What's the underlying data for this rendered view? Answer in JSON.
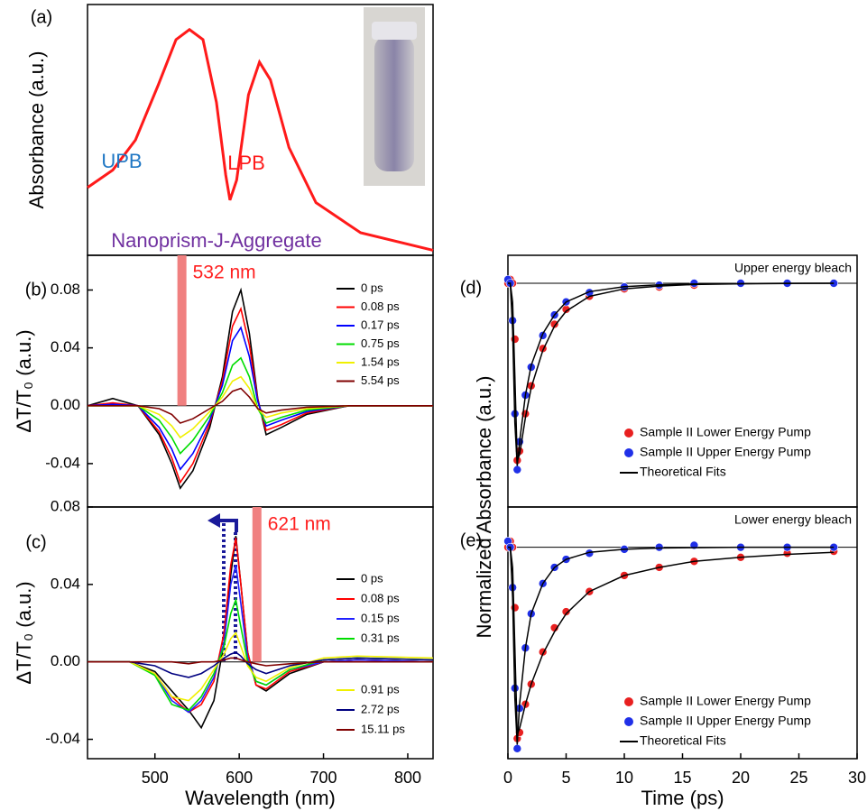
{
  "chart_data": [
    {
      "type": "line",
      "panel_label": "(a)",
      "ylabel": "Absorbance (a.u.)",
      "x": [
        420,
        450,
        477,
        504,
        525,
        541,
        557,
        573,
        584,
        589,
        597,
        611,
        624,
        637,
        659,
        691,
        744,
        830
      ],
      "series": [
        {
          "color": "#ff1a1a",
          "values": [
            0.27,
            0.34,
            0.46,
            0.68,
            0.86,
            0.9,
            0.86,
            0.61,
            0.32,
            0.22,
            0.3,
            0.64,
            0.77,
            0.7,
            0.43,
            0.21,
            0.09,
            0.02
          ]
        }
      ],
      "xlim": [
        420,
        830
      ],
      "ylim": [
        0,
        1
      ],
      "annotations": [
        {
          "text": "UPB",
          "color": "#1f77c4"
        },
        {
          "text": "LPB",
          "color": "#ff1a1a"
        },
        {
          "text": "Nanoprism-J-Aggregate",
          "color": "#7030a0"
        }
      ]
    },
    {
      "type": "line",
      "panel_label": "(b)",
      "ylabel": "ΔT/T₀ (a.u.)",
      "x": [
        420,
        450,
        480,
        505,
        520,
        530,
        545,
        565,
        580,
        592,
        602,
        612,
        622,
        632,
        650,
        680,
        730,
        830
      ],
      "series": [
        {
          "name": "0 ps",
          "color": "#000000",
          "values": [
            0,
            0.005,
            0,
            -0.02,
            -0.04,
            -0.057,
            -0.045,
            -0.015,
            0.02,
            0.065,
            0.08,
            0.05,
            0.005,
            -0.02,
            -0.015,
            -0.006,
            0,
            0
          ]
        },
        {
          "name": "0.08 ps",
          "color": "#ff0000",
          "values": [
            0,
            0.002,
            0,
            -0.018,
            -0.036,
            -0.053,
            -0.04,
            -0.012,
            0.017,
            0.055,
            0.067,
            0.042,
            0.004,
            -0.017,
            -0.013,
            -0.005,
            0,
            0
          ]
        },
        {
          "name": "0.17 ps",
          "color": "#0000ff",
          "values": [
            0,
            0.001,
            0,
            -0.015,
            -0.03,
            -0.044,
            -0.033,
            -0.01,
            0.014,
            0.045,
            0.054,
            0.034,
            0.003,
            -0.014,
            -0.01,
            -0.004,
            0,
            0
          ]
        },
        {
          "name": "0.75 ps",
          "color": "#00dd00",
          "values": [
            0,
            0,
            0,
            -0.01,
            -0.022,
            -0.033,
            -0.024,
            -0.007,
            0.009,
            0.028,
            0.033,
            0.02,
            -0.002,
            -0.012,
            -0.008,
            -0.003,
            0,
            0
          ]
        },
        {
          "name": "1.54 ps",
          "color": "#f0f000",
          "values": [
            0,
            0,
            0,
            -0.006,
            -0.014,
            -0.022,
            -0.016,
            -0.004,
            0.006,
            0.017,
            0.02,
            0.012,
            -0.002,
            -0.008,
            -0.005,
            -0.002,
            0,
            0
          ]
        },
        {
          "name": "5.54 ps",
          "color": "#800000",
          "values": [
            0,
            0,
            0,
            -0.002,
            -0.006,
            -0.012,
            -0.009,
            -0.002,
            0.003,
            0.01,
            0.012,
            0.006,
            -0.002,
            -0.005,
            -0.003,
            -0.001,
            0,
            0
          ]
        }
      ],
      "xlim": [
        420,
        830
      ],
      "ylim": [
        -0.07,
        0.104
      ],
      "yticks": [
        -0.04,
        {
          "value": 0,
          "label": "0.00"
        },
        0.04,
        0.08
      ],
      "pump": {
        "label": "532 nm",
        "value": 532
      }
    },
    {
      "type": "line",
      "panel_label": "(c)",
      "ylabel": "ΔT/T₀ (a.u.)",
      "xlabel": "Wavelength (nm)",
      "x": [
        420,
        470,
        500,
        520,
        540,
        555,
        570,
        582,
        590,
        596,
        602,
        610,
        620,
        632,
        660,
        700,
        740,
        830
      ],
      "series": [
        {
          "name": "0 ps",
          "color": "#000000",
          "values": [
            0,
            0,
            -0.005,
            -0.015,
            -0.025,
            -0.034,
            -0.02,
            0.01,
            0.045,
            0.065,
            0.04,
            0.005,
            -0.012,
            -0.015,
            -0.006,
            0,
            0.001,
            0
          ]
        },
        {
          "name": "0.08 ps",
          "color": "#ff0000",
          "values": [
            0,
            0,
            -0.006,
            -0.018,
            -0.026,
            -0.022,
            -0.01,
            0.015,
            0.05,
            0.064,
            0.04,
            0.005,
            -0.012,
            -0.014,
            -0.005,
            0,
            0.001,
            0
          ]
        },
        {
          "name": "0.15 ps",
          "color": "#2020ff",
          "values": [
            0,
            0,
            -0.006,
            -0.02,
            -0.026,
            -0.02,
            -0.008,
            0.01,
            0.04,
            0.05,
            0.03,
            0.002,
            -0.01,
            -0.012,
            -0.004,
            0,
            0.001,
            0
          ]
        },
        {
          "name": "0.31 ps",
          "color": "#00dd00",
          "values": [
            0,
            0,
            -0.007,
            -0.022,
            -0.025,
            -0.018,
            -0.006,
            0.008,
            0.025,
            0.032,
            0.018,
            0,
            -0.01,
            -0.012,
            -0.004,
            0.001,
            0.002,
            0.001
          ]
        },
        {
          "name": "0.91 ps",
          "color": "#f0f000",
          "values": [
            0,
            0,
            -0.006,
            -0.018,
            -0.02,
            -0.014,
            -0.004,
            0.004,
            0.012,
            0.015,
            0.008,
            -0.002,
            -0.008,
            -0.01,
            -0.003,
            0.002,
            0.003,
            0.002
          ]
        },
        {
          "name": "2.72 ps",
          "color": "#000080",
          "values": [
            0,
            0,
            -0.002,
            -0.006,
            -0.008,
            -0.006,
            -0.002,
            0.002,
            0.004,
            0.005,
            0.003,
            -0.001,
            -0.004,
            -0.006,
            -0.002,
            0.001,
            0.002,
            0.001
          ]
        },
        {
          "name": "15.11 ps",
          "color": "#800000",
          "values": [
            0,
            0,
            0,
            0,
            -0.001,
            0,
            0,
            0.001,
            0.002,
            0.002,
            0.001,
            0,
            -0.001,
            -0.002,
            -0.001,
            0,
            0,
            0
          ]
        }
      ],
      "xlim": [
        420,
        830
      ],
      "ylim": [
        -0.05,
        0.08
      ],
      "xticks": [
        500,
        600,
        700,
        800
      ],
      "yticks": [
        -0.04,
        {
          "value": 0,
          "label": "0.00"
        },
        0.04,
        0.08
      ],
      "pump": {
        "label": "621 nm",
        "value": 621
      }
    },
    {
      "type": "scatter",
      "panel_label": "(d)",
      "title": "Upper energy bleach",
      "ylabel": "Normalized Absorbance (a.u.)",
      "x": [
        0,
        0.2,
        0.4,
        0.6,
        0.8,
        1,
        1.5,
        2,
        3,
        4,
        5,
        7,
        10,
        13,
        16,
        20,
        24,
        28
      ],
      "series": [
        {
          "name": "Sample II Lower Energy Pump",
          "color": "#e82020",
          "values": [
            0,
            0.02,
            0,
            -0.3,
            -0.95,
            -0.9,
            -0.7,
            -0.55,
            -0.35,
            -0.22,
            -0.14,
            -0.07,
            -0.03,
            -0.02,
            -0.01,
            0,
            0,
            0
          ]
        },
        {
          "name": "Sample II Upper Energy Pump",
          "color": "#2030e8",
          "values": [
            0.02,
            0,
            -0.2,
            -0.7,
            -1.0,
            -0.85,
            -0.6,
            -0.45,
            -0.28,
            -0.17,
            -0.1,
            -0.05,
            -0.02,
            -0.01,
            0,
            0,
            0,
            0
          ]
        }
      ],
      "fits": {
        "name": "Theoretical Fits",
        "color": "#000000",
        "lines": [
          [
            0,
            0,
            -0.1,
            -0.5,
            -0.95,
            -0.92,
            -0.72,
            -0.56,
            -0.36,
            -0.23,
            -0.15,
            -0.07,
            -0.03,
            -0.015,
            -0.007,
            -0.003,
            -0.001,
            0
          ],
          [
            0,
            0,
            -0.25,
            -0.75,
            -0.98,
            -0.85,
            -0.6,
            -0.44,
            -0.27,
            -0.17,
            -0.1,
            -0.045,
            -0.018,
            -0.008,
            -0.004,
            -0.002,
            0,
            0
          ]
        ]
      },
      "xlim": [
        0,
        30
      ],
      "ylim": [
        -1.2,
        0.15
      ]
    },
    {
      "type": "scatter",
      "panel_label": "(e)",
      "title": "Lower energy bleach",
      "xlabel": "Time (ps)",
      "x": [
        0,
        0.2,
        0.4,
        0.6,
        0.8,
        1,
        1.5,
        2,
        3,
        4,
        5,
        7,
        10,
        13,
        16,
        20,
        24,
        28
      ],
      "series": [
        {
          "name": "Sample II Lower Energy Pump",
          "color": "#e82020",
          "values": [
            0,
            0.03,
            0,
            -0.3,
            -0.95,
            -0.92,
            -0.78,
            -0.68,
            -0.52,
            -0.4,
            -0.32,
            -0.22,
            -0.14,
            -0.1,
            -0.07,
            -0.05,
            -0.03,
            -0.02
          ]
        },
        {
          "name": "Sample II Upper Energy Pump",
          "color": "#2030e8",
          "values": [
            0.03,
            0,
            -0.2,
            -0.7,
            -1.0,
            -0.8,
            -0.5,
            -0.33,
            -0.18,
            -0.1,
            -0.06,
            -0.03,
            -0.01,
            0,
            0.01,
            0,
            0,
            0
          ]
        }
      ],
      "fits": {
        "name": "Theoretical Fits",
        "color": "#000000",
        "lines": [
          [
            0,
            0,
            -0.1,
            -0.5,
            -0.93,
            -0.9,
            -0.78,
            -0.68,
            -0.53,
            -0.42,
            -0.33,
            -0.22,
            -0.14,
            -0.1,
            -0.07,
            -0.05,
            -0.035,
            -0.025
          ],
          [
            0,
            0,
            -0.25,
            -0.75,
            -0.98,
            -0.78,
            -0.5,
            -0.33,
            -0.18,
            -0.1,
            -0.06,
            -0.025,
            -0.01,
            -0.004,
            -0.002,
            0,
            0,
            0
          ]
        ]
      },
      "xlim": [
        0,
        30
      ],
      "ylim": [
        -1.05,
        0.2
      ],
      "xticks": [
        0,
        5,
        10,
        15,
        20,
        25,
        30
      ]
    }
  ]
}
